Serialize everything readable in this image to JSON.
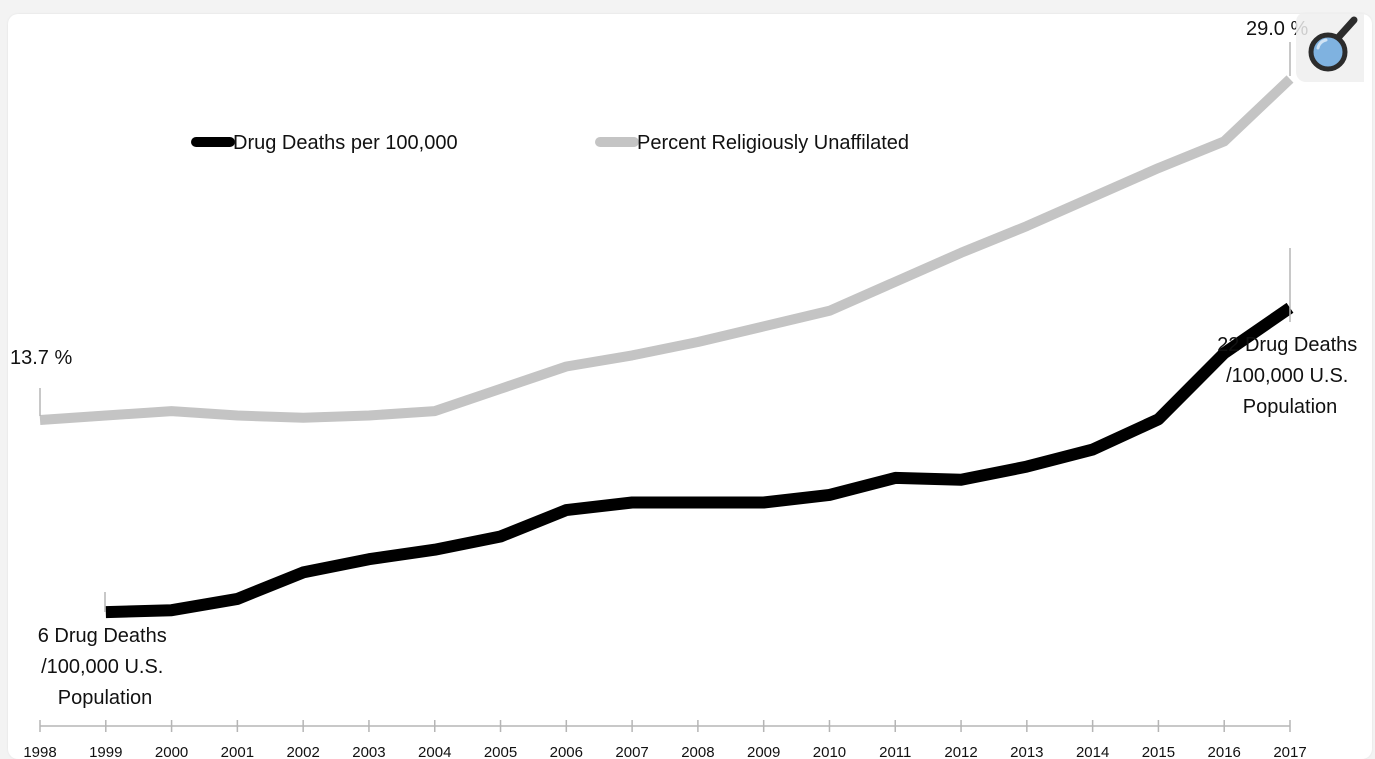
{
  "chart_data": {
    "type": "line",
    "x": [
      "1998",
      "1999",
      "2000",
      "2001",
      "2002",
      "2003",
      "2004",
      "2005",
      "2006",
      "2007",
      "2008",
      "2009",
      "2010",
      "2011",
      "2012",
      "2013",
      "2014",
      "2015",
      "2016",
      "2017"
    ],
    "series": [
      {
        "name": "Drug Deaths per 100,000",
        "color": "#000000",
        "values": [
          null,
          6.1,
          6.2,
          6.8,
          8.2,
          8.9,
          9.4,
          10.1,
          11.5,
          11.9,
          11.9,
          11.9,
          12.3,
          13.2,
          13.1,
          13.8,
          14.7,
          16.3,
          19.8,
          22.2
        ]
      },
      {
        "name": "Percent Religiously Unaffilated",
        "color": "#c4c4c4",
        "values": [
          13.7,
          13.9,
          14.1,
          13.9,
          13.8,
          13.9,
          14.1,
          15.1,
          16.1,
          16.6,
          17.2,
          17.9,
          18.6,
          19.9,
          21.2,
          22.4,
          23.7,
          25.0,
          26.2,
          29.0
        ]
      }
    ],
    "legend": {
      "position": "top-left"
    },
    "grid": false,
    "annotations": {
      "start_unaffiliated": "13.7 %",
      "end_unaffiliated": "29.0 %",
      "start_deaths": [
        "6 Drug Deaths",
        "/100,000 U.S.",
        "Population"
      ],
      "end_deaths": [
        "22 Drug Deaths",
        "/100,000 U.S.",
        "Population"
      ]
    }
  },
  "controls": {
    "zoom_icon": "magnifier-icon"
  }
}
